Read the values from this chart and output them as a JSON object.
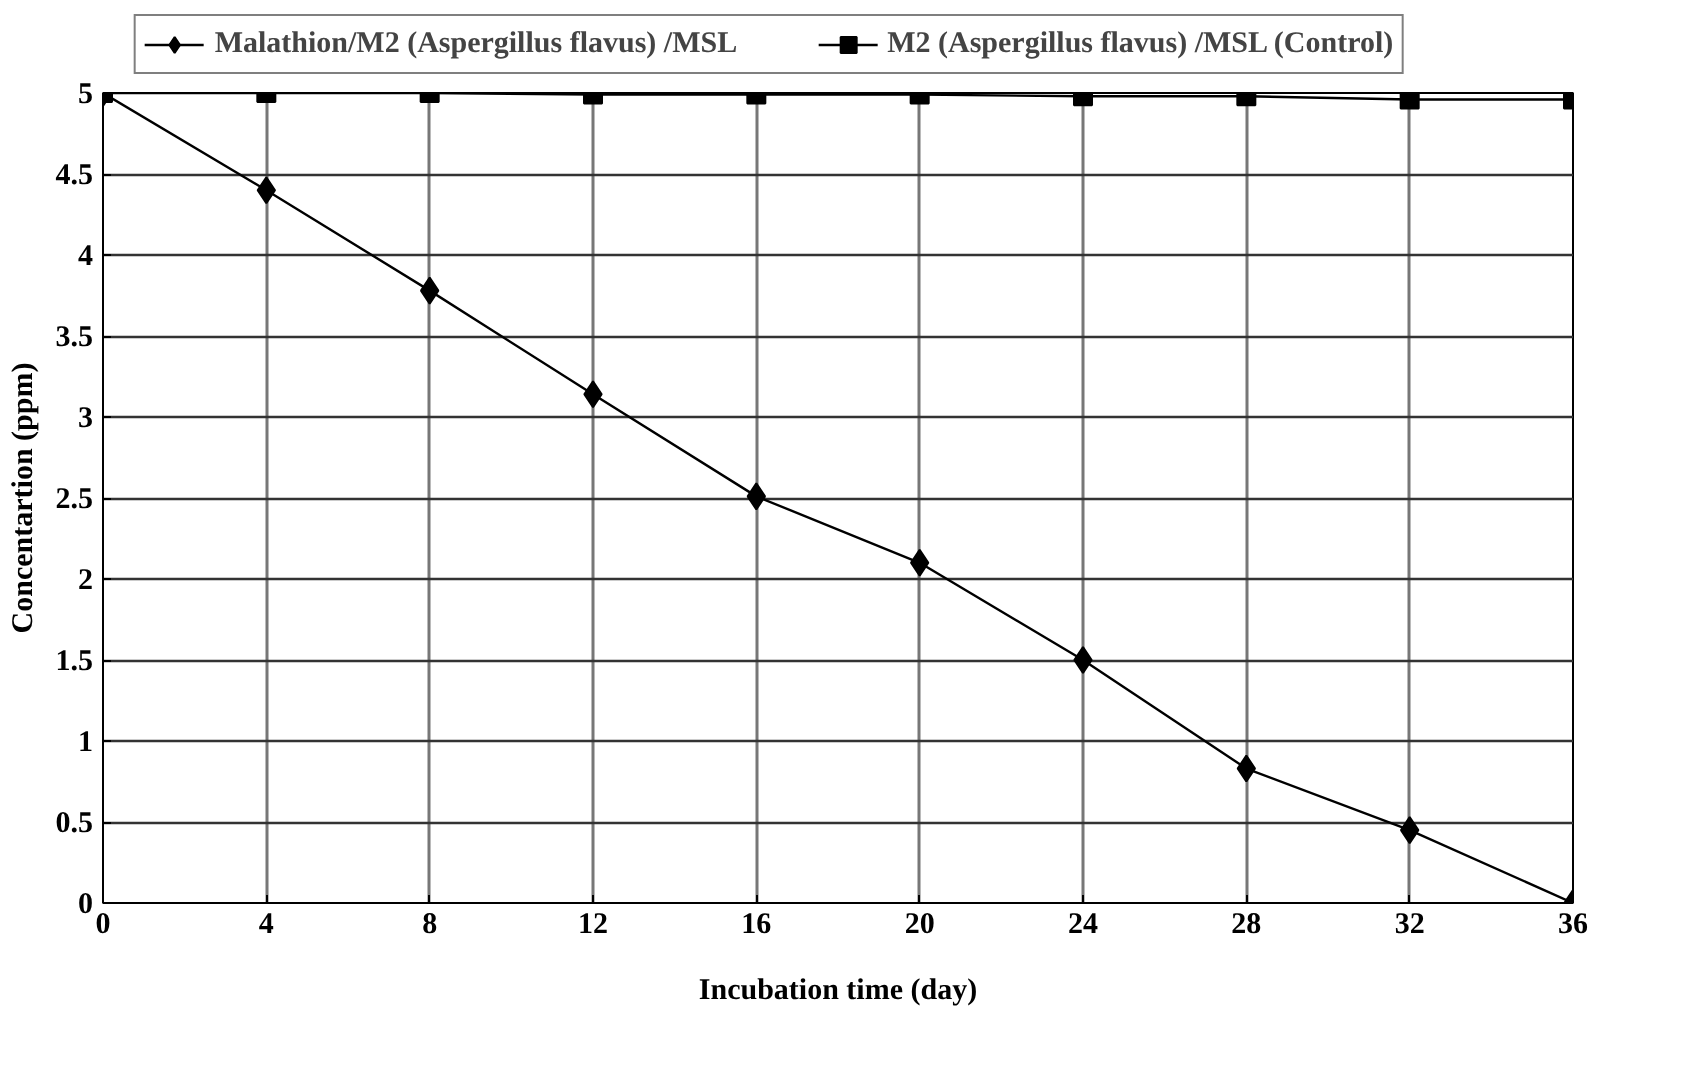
{
  "chart_data": {
    "type": "line",
    "xlabel": "Incubation time (day)",
    "ylabel": "Concentartion (ppm)",
    "x": [
      0,
      4,
      8,
      12,
      16,
      20,
      24,
      28,
      32,
      36
    ],
    "series": [
      {
        "name": "Malathion/M2 (Aspergillus flavus) /MSL",
        "color": "#000000",
        "marker": "diamond",
        "values": [
          5,
          4.4,
          3.78,
          3.14,
          2.51,
          2.1,
          1.5,
          0.83,
          0.45,
          0
        ]
      },
      {
        "name": "M2 (Aspergillus flavus) /MSL (Control)",
        "color": "#000000",
        "marker": "square",
        "values": [
          5,
          5,
          5,
          4.99,
          4.99,
          4.99,
          4.98,
          4.98,
          4.96,
          4.96
        ]
      }
    ],
    "xlim": [
      0,
      36
    ],
    "ylim": [
      0,
      5
    ],
    "xticks": [
      0,
      4,
      8,
      12,
      16,
      20,
      24,
      28,
      32,
      36
    ],
    "yticks": [
      0,
      0.5,
      1,
      1.5,
      2,
      2.5,
      3,
      3.5,
      4,
      4.5,
      5
    ],
    "grid": true,
    "legend": "top",
    "line_style": "solid"
  }
}
